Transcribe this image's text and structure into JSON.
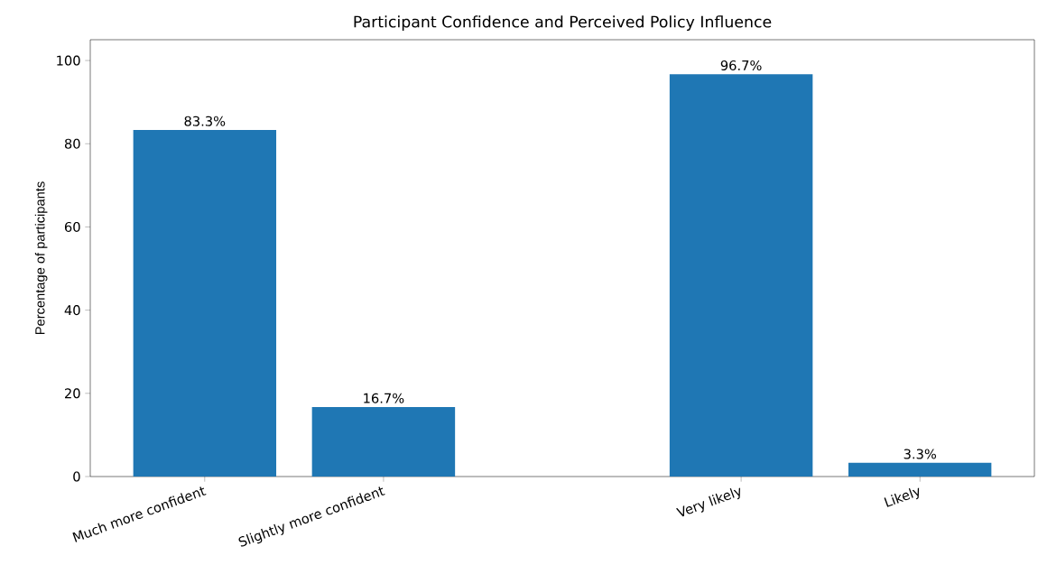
{
  "chart_data": {
    "type": "bar",
    "title": "Participant Confidence and Perceived Policy Influence",
    "ylabel": "Percentage of participants",
    "categories": [
      "Much more confident",
      "Slightly more confident",
      null,
      "Very likely",
      "Likely"
    ],
    "values": [
      83.3,
      16.7,
      null,
      96.7,
      3.3
    ],
    "value_labels": [
      "83.3%",
      "16.7%",
      null,
      "96.7%",
      "3.3%"
    ],
    "color": "#1f77b4",
    "ylim": [
      0,
      105
    ],
    "yticks": [
      0,
      20,
      40,
      60,
      80,
      100
    ]
  }
}
